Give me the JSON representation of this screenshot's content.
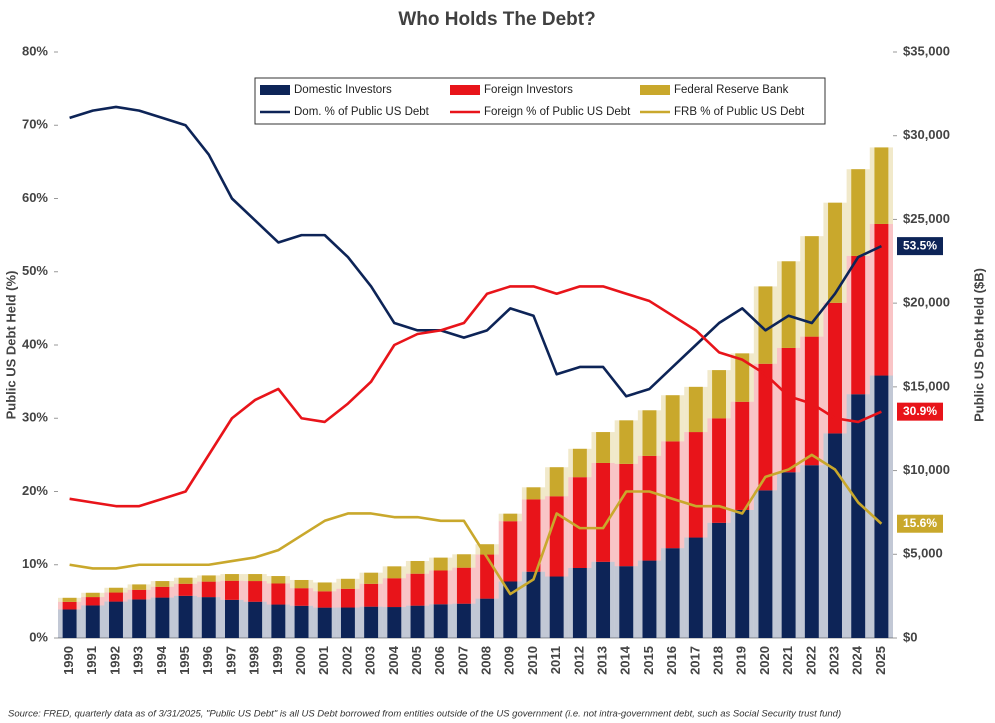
{
  "chart_data": {
    "type": "bar",
    "title": "Who Holds The Debt?",
    "y_label": "Public US Debt Held (%)",
    "y2_label": "Public US Debt Held ($B)",
    "source": "Source: FRED, quarterly data as of 3/31/2025, \"Public US Debt\" is all US Debt borrowed from entities outside of the US government (i.e. not intra-government debt, such as Social Security trust fund)",
    "categories": [
      "1990",
      "1991",
      "1992",
      "1993",
      "1994",
      "1995",
      "1996",
      "1997",
      "1998",
      "1999",
      "2000",
      "2001",
      "2002",
      "2003",
      "2004",
      "2005",
      "2006",
      "2007",
      "2008",
      "2009",
      "2010",
      "2011",
      "2012",
      "2013",
      "2014",
      "2015",
      "2016",
      "2017",
      "2018",
      "2019",
      "2020",
      "2021",
      "2022",
      "2023",
      "2024",
      "2025"
    ],
    "ylim": [
      0,
      80
    ],
    "yticks": [
      {
        "value": 0,
        "label": "0%"
      },
      {
        "value": 10,
        "label": "10%"
      },
      {
        "value": 20,
        "label": "20%"
      },
      {
        "value": 30,
        "label": "30%"
      },
      {
        "value": 40,
        "label": "40%"
      },
      {
        "value": 50,
        "label": "50%"
      },
      {
        "value": 60,
        "label": "60%"
      },
      {
        "value": 70,
        "label": "70%"
      },
      {
        "value": 80,
        "label": "80%"
      }
    ],
    "y2lim": [
      0,
      35000
    ],
    "y2ticks": [
      {
        "value": 0,
        "label": "$0"
      },
      {
        "value": 5000,
        "label": "$5,000"
      },
      {
        "value": 10000,
        "label": "$10,000"
      },
      {
        "value": 15000,
        "label": "$15,000"
      },
      {
        "value": 20000,
        "label": "$20,000"
      },
      {
        "value": 25000,
        "label": "$25,000"
      },
      {
        "value": 30000,
        "label": "$30,000"
      },
      {
        "value": 35000,
        "label": "$35,000"
      }
    ],
    "grid": false,
    "legend": "top",
    "series": [
      {
        "name": "Domestic Investors",
        "type": "bar",
        "axis": "y2",
        "color": "#0d2457",
        "values": [
          1704,
          1944,
          2175,
          2304,
          2414,
          2520,
          2442,
          2280,
          2166,
          1998,
          1925,
          1815,
          1820,
          1872,
          1849,
          1932,
          2016,
          2050,
          2352,
          3375,
          3960,
          3672,
          4181,
          4551,
          4290,
          4624,
          5365,
          6000,
          6880,
          7650,
          8820,
          9900,
          10320,
          12220,
          14560,
          15676
        ]
      },
      {
        "name": "Foreign Investors",
        "type": "bar",
        "axis": "y2",
        "color": "#e8141a",
        "values": [
          456,
          500,
          540,
          576,
          646,
          720,
          925,
          1140,
          1235,
          1258,
          1050,
          974,
          1120,
          1365,
          1720,
          1909,
          2016,
          2150,
          2632,
          3600,
          4320,
          4794,
          5424,
          5904,
          6110,
          6256,
          6380,
          6300,
          6240,
          6460,
          7560,
          7425,
          7680,
          7800,
          8260,
          9054
        ]
      },
      {
        "name": "Federal Reserve Bank",
        "type": "bar",
        "axis": "y2",
        "color": "#c9a82c",
        "values": [
          240,
          256,
          285,
          320,
          340,
          360,
          370,
          399,
          418,
          444,
          490,
          528,
          595,
          663,
          710,
          759,
          768,
          800,
          616,
          450,
          720,
          1734,
          1695,
          1845,
          2600,
          2720,
          2755,
          2700,
          2880,
          2890,
          4620,
          5175,
          6000,
          5980,
          5180,
          4571
        ]
      },
      {
        "name": "Dom. % of Public US Debt",
        "type": "line",
        "axis": "y",
        "color": "#0d2457",
        "values": [
          71,
          72,
          72.5,
          72,
          71,
          70,
          66,
          60,
          57,
          54,
          55,
          55,
          52,
          48,
          43,
          42,
          42,
          41,
          42,
          45,
          44,
          36,
          37,
          37,
          33,
          34,
          37,
          40,
          43,
          45,
          42,
          44,
          43,
          47,
          52,
          53.5
        ],
        "value_labels": [
          null,
          null,
          null,
          null,
          null,
          null,
          null,
          null,
          null,
          null,
          null,
          null,
          null,
          null,
          null,
          null,
          null,
          null,
          null,
          null,
          null,
          null,
          null,
          null,
          null,
          null,
          null,
          null,
          null,
          null,
          null,
          null,
          null,
          null,
          null,
          "53.5%"
        ]
      },
      {
        "name": "Foreign % of Public US Debt",
        "type": "line",
        "axis": "y",
        "color": "#e8141a",
        "values": [
          19,
          18.5,
          18,
          18,
          19,
          20,
          25,
          30,
          32.5,
          34,
          30,
          29.5,
          32,
          35,
          40,
          41.5,
          42,
          43,
          47,
          48,
          48,
          47,
          48,
          48,
          47,
          46,
          44,
          42,
          39,
          38,
          36,
          33,
          32,
          30,
          29.5,
          30.9
        ],
        "value_labels": [
          null,
          null,
          null,
          null,
          null,
          null,
          null,
          null,
          null,
          null,
          null,
          null,
          null,
          null,
          null,
          null,
          null,
          null,
          null,
          null,
          null,
          null,
          null,
          null,
          null,
          null,
          null,
          null,
          null,
          null,
          null,
          null,
          null,
          null,
          null,
          "30.9%"
        ]
      },
      {
        "name": "FRB % of Public US Debt",
        "type": "line",
        "axis": "y",
        "color": "#c9a82c",
        "values": [
          10,
          9.5,
          9.5,
          10,
          10,
          10,
          10,
          10.5,
          11,
          12,
          14,
          16,
          17,
          17,
          16.5,
          16.5,
          16,
          16,
          11,
          6,
          8,
          17,
          15,
          15,
          20,
          20,
          19,
          18,
          18,
          17,
          22,
          23,
          25,
          23,
          18.5,
          15.6
        ],
        "value_labels": [
          null,
          null,
          null,
          null,
          null,
          null,
          null,
          null,
          null,
          null,
          null,
          null,
          null,
          null,
          null,
          null,
          null,
          null,
          null,
          null,
          null,
          null,
          null,
          null,
          null,
          null,
          null,
          null,
          null,
          null,
          null,
          null,
          null,
          null,
          null,
          "15.6%"
        ]
      }
    ]
  }
}
